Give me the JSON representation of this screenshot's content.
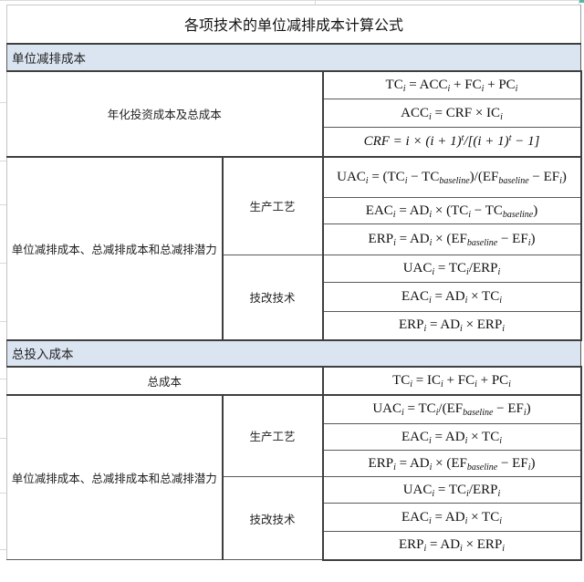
{
  "title": "各项技术的单位减排成本计算公式",
  "colors": {
    "section_header_bg": "#dbe5f1",
    "border_dark": "#3f3f3f",
    "border_inner": "#595959",
    "gridline_light": "#d9d9d9"
  },
  "section1": {
    "header": "单位减排成本",
    "block_a": {
      "label": "年化投资成本及总成本",
      "f1": "TC_{i} = ACC_{i} + FC_{i} + PC_{i}",
      "f2": "ACC_{i} = CRF × IC_{i}",
      "f3": "CRF = i × (i + 1)^{t}/[(i + 1)^{t} − 1]"
    },
    "block_b": {
      "label": "单位减排成本、总减排成本和总减排潜力",
      "group1": {
        "label": "生产工艺",
        "f1": "UAC_{i} = (TC_{i} − TC_{baseline})/(EF_{baseline} − EF_{i})",
        "f2": "EAC_{i} = AD_{i} × (TC_{i} − TC_{baseline})",
        "f3": "ERP_{i} = AD_{i} × (EF_{baseline} − EF_{i})"
      },
      "group2": {
        "label": "技改技术",
        "f1": "UAC_{i} = TC_{i}/ERP_{i}",
        "f2": "EAC_{i} = AD_{i} × TC_{i}",
        "f3": "ERP_{i} = AD_{i} × ERP_{i}"
      }
    }
  },
  "section2": {
    "header": "总投入成本",
    "block_c": {
      "label": "总成本",
      "f1": "TC_{i} = IC_{i} + FC_{i} + PC_{i}"
    },
    "block_d": {
      "label": "单位减排成本、总减排成本和总减排潜力",
      "group1": {
        "label": "生产工艺",
        "f1": "UAC_{i} = TC_{i}/(EF_{baseline} − EF_{i})",
        "f2": "EAC_{i} = AD_{i} × TC_{i}",
        "f3": "ERP_{i} = AD_{i} × (EF_{baseline} − EF_{i})"
      },
      "group2": {
        "label": "技改技术",
        "f1": "UAC_{i} = TC_{i}/ERP_{i}",
        "f2": "EAC_{i} = AD_{i} × TC_{i}",
        "f3": "ERP_{i} = AD_{i} × ERP_{i}"
      }
    }
  }
}
